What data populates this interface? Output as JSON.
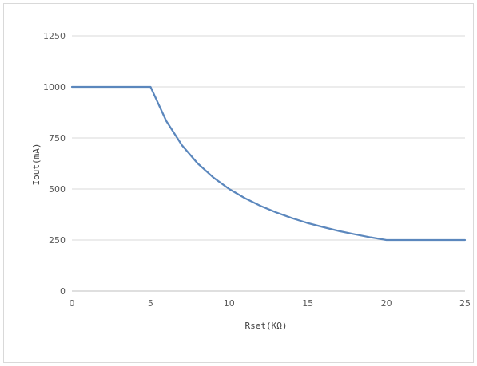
{
  "chart_data": {
    "type": "line",
    "title": "",
    "xlabel": "Rset(KΩ)",
    "ylabel": "Iout(mA)",
    "xlim": [
      0,
      25
    ],
    "ylim": [
      0,
      1250
    ],
    "xticks": [
      0,
      5,
      10,
      15,
      20,
      25
    ],
    "yticks": [
      0,
      250,
      500,
      750,
      1000,
      1250
    ],
    "grid": "horizontal",
    "legend": "none",
    "series": [
      {
        "color": "#5b87bd",
        "x": [
          0,
          5,
          6,
          7,
          8,
          9,
          10,
          11,
          12,
          13,
          14,
          15,
          16,
          17,
          18,
          19,
          20,
          25
        ],
        "y": [
          1000,
          1000,
          833,
          714,
          625,
          556,
          500,
          455,
          417,
          385,
          357,
          333,
          313,
          294,
          278,
          263,
          250,
          250
        ]
      }
    ]
  }
}
